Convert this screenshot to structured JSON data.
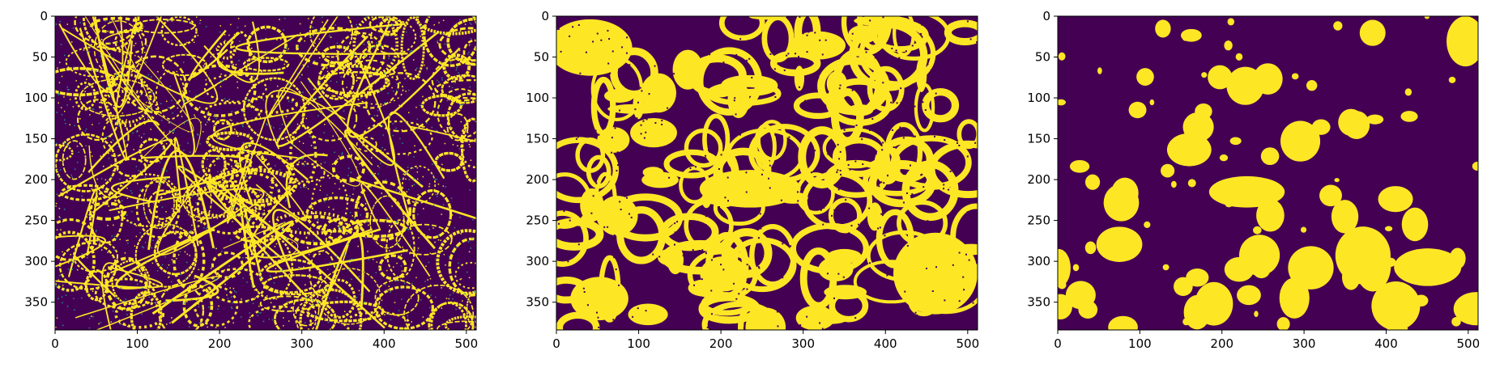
{
  "figure": {
    "background": "#ffffff",
    "colormap": {
      "low": "#440154",
      "mid": "#21918c",
      "high": "#fde725"
    },
    "panels": [
      {
        "name": "panel-1",
        "variant": "thresholded-membranes",
        "x_ticks": [
          "0",
          "100",
          "200",
          "300",
          "400",
          "500"
        ],
        "y_ticks": [
          "0",
          "50",
          "100",
          "150",
          "200",
          "250",
          "300",
          "350"
        ]
      },
      {
        "name": "panel-2",
        "variant": "dilated-mask",
        "x_ticks": [
          "0",
          "100",
          "200",
          "300",
          "400",
          "500"
        ],
        "y_ticks": [
          "0",
          "50",
          "100",
          "150",
          "200",
          "250",
          "300",
          "350"
        ]
      },
      {
        "name": "panel-3",
        "variant": "blob-mask",
        "x_ticks": [
          "0",
          "100",
          "200",
          "300",
          "400",
          "500"
        ],
        "y_ticks": [
          "0",
          "50",
          "100",
          "150",
          "200",
          "250",
          "300",
          "350"
        ]
      }
    ]
  }
}
